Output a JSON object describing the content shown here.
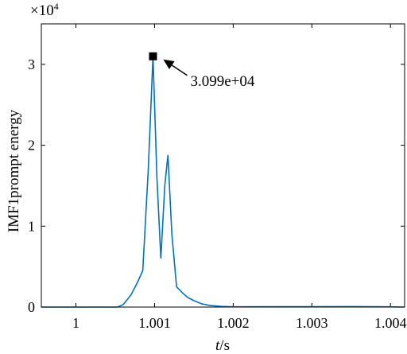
{
  "chart_data": {
    "type": "line",
    "xlabel_italic": "t",
    "xlabel_rest": "/s",
    "ylabel": "IMF1prompt energy",
    "y_exponent_base": "×10",
    "y_exponent_power": "4",
    "xlim": [
      0.99956,
      1.00418
    ],
    "ylim": [
      0,
      35000
    ],
    "xticks": [
      1,
      1.001,
      1.002,
      1.003,
      1.004
    ],
    "xtick_labels": [
      "1",
      "1.001",
      "1.002",
      "1.003",
      "1.004"
    ],
    "yticks": [
      0,
      10000,
      20000,
      30000
    ],
    "ytick_labels": [
      "0",
      "1",
      "2",
      "3"
    ],
    "grid": false,
    "line_color": "#0072BD",
    "series": [
      {
        "x": [
          0.99956,
          1.0002,
          1.00053,
          1.0006,
          1.0007,
          1.00078,
          1.00085,
          1.00092,
          1.00098,
          1.00103,
          1.00108,
          1.00113,
          1.00117,
          1.00122,
          1.00128,
          1.00135,
          1.00142,
          1.0015,
          1.0016,
          1.0017,
          1.00185,
          1.002,
          1.0025,
          1.003,
          1.0035,
          1.004,
          1.00418
        ],
        "y": [
          0,
          0,
          0,
          300,
          1500,
          3000,
          4500,
          17000,
          31000,
          16000,
          6000,
          15000,
          18800,
          9000,
          2500,
          1800,
          1200,
          800,
          400,
          200,
          80,
          30,
          50,
          40,
          60,
          30,
          0
        ]
      }
    ],
    "annotation": {
      "x": 1.00098,
      "y": 30990,
      "text": "3.099e+04"
    }
  }
}
